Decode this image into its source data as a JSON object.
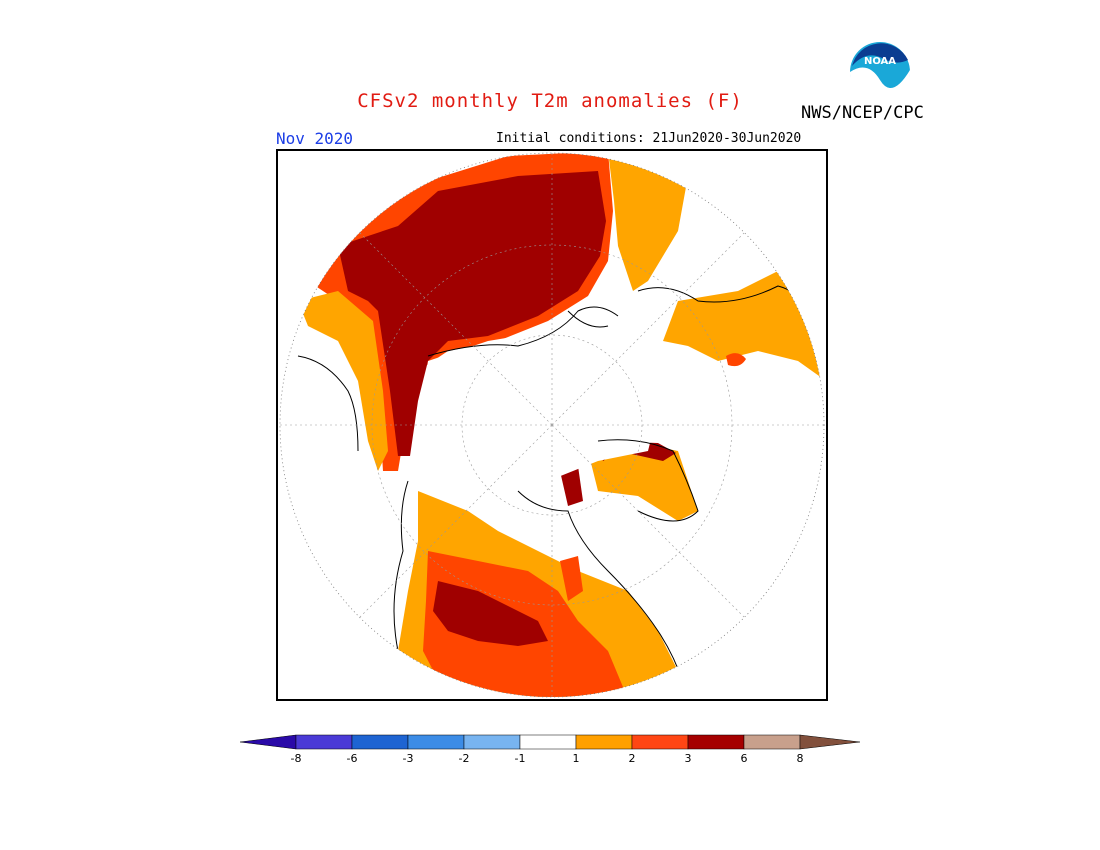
{
  "title": "CFSv2 monthly T2m anomalies (F)",
  "agency": "NWS/NCEP/CPC",
  "logo_text": "NOAA",
  "month": "Nov 2020",
  "initial_conditions": "Initial conditions: 21Jun2020-30Jun2020",
  "colors": {
    "title": "#e11b12",
    "month": "#1c3ee6",
    "anom_1_2": "#ffa500",
    "anom_2_3": "#ff4500",
    "anom_3_6": "#a00000",
    "anom_6_8": "#c8a090"
  },
  "colorbar": {
    "colors": [
      "#2a0aa8",
      "#4a3ad6",
      "#1e64d2",
      "#3c8ce6",
      "#78b4f0",
      "#ffffff",
      "#ffa000",
      "#ff4614",
      "#a50000",
      "#c8a08c",
      "#82503c"
    ],
    "ticks": [
      "-8",
      "-6",
      "-3",
      "-2",
      "-1",
      "1",
      "2",
      "3",
      "6",
      "8"
    ]
  }
}
